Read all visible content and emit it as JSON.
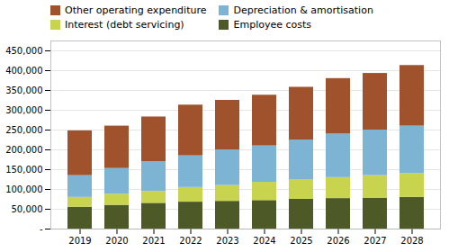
{
  "chart_data": {
    "type": "bar",
    "stacked": true,
    "categories": [
      "2019",
      "2020",
      "2021",
      "2022",
      "2023",
      "2024",
      "2025",
      "2026",
      "2027",
      "2028"
    ],
    "series": [
      {
        "name": "Employee costs",
        "color": "#4d5a27",
        "values": [
          55000,
          60000,
          65000,
          68000,
          70000,
          72000,
          75000,
          77000,
          78000,
          80000
        ]
      },
      {
        "name": "Interest (debt servicing)",
        "color": "#c8d44e",
        "values": [
          25000,
          28000,
          30000,
          37000,
          40000,
          46000,
          50000,
          53000,
          57000,
          60000
        ]
      },
      {
        "name": "Depreciation & amortisation",
        "color": "#7db4d4",
        "values": [
          55000,
          65000,
          75000,
          80000,
          90000,
          92000,
          100000,
          110000,
          115000,
          120000
        ]
      },
      {
        "name": "Other operating expenditure",
        "color": "#a0522d",
        "values": [
          113000,
          107000,
          113000,
          128000,
          125000,
          128000,
          133000,
          140000,
          143000,
          153000
        ]
      }
    ],
    "ylim": [
      0,
      475000
    ],
    "yticks": [
      {
        "value": 0,
        "label": "-"
      },
      {
        "value": 50000,
        "label": "50,000"
      },
      {
        "value": 100000,
        "label": "100,000"
      },
      {
        "value": 150000,
        "label": "150,000"
      },
      {
        "value": 200000,
        "label": "200,000"
      },
      {
        "value": 250000,
        "label": "250,000"
      },
      {
        "value": 300000,
        "label": "300,000"
      },
      {
        "value": 350000,
        "label": "350,000"
      },
      {
        "value": 400000,
        "label": "400,000"
      },
      {
        "value": 450000,
        "label": "450,000"
      }
    ],
    "grid": true,
    "legend": "top"
  }
}
